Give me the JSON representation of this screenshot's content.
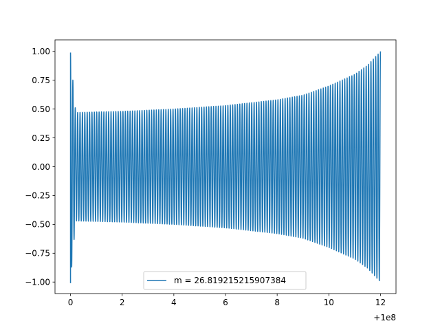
{
  "chart_data": {
    "type": "line",
    "title": "",
    "xlabel": "",
    "ylabel": "",
    "x_offset_label": "+1e8",
    "xlim": [
      -0.6,
      12.6
    ],
    "ylim": [
      -1.1,
      1.1
    ],
    "x_ticks": [
      0,
      2,
      4,
      6,
      8,
      10,
      12
    ],
    "x_tick_labels": [
      "0",
      "2",
      "4",
      "6",
      "8",
      "10",
      "12"
    ],
    "y_ticks": [
      -1.0,
      -0.75,
      -0.5,
      -0.25,
      0.0,
      0.25,
      0.5,
      0.75,
      1.0
    ],
    "y_tick_labels": [
      "−1.00",
      "−0.75",
      "−0.50",
      "−0.25",
      "0.00",
      "0.25",
      "0.50",
      "0.75",
      "1.00"
    ],
    "grid": false,
    "legend_position": "lower-center",
    "series": [
      {
        "name": "m = 26.819215215907384",
        "color": "#1f77b4",
        "x_range": [
          0,
          12
        ],
        "oscillation_cycles": 130,
        "envelope": [
          {
            "x": 0.0,
            "amplitude": 0.99
          },
          {
            "x": 0.2,
            "amplitude": 0.47
          },
          {
            "x": 2.0,
            "amplitude": 0.48
          },
          {
            "x": 4.0,
            "amplitude": 0.5
          },
          {
            "x": 6.0,
            "amplitude": 0.53
          },
          {
            "x": 8.0,
            "amplitude": 0.58
          },
          {
            "x": 9.0,
            "amplitude": 0.62
          },
          {
            "x": 10.0,
            "amplitude": 0.7
          },
          {
            "x": 11.0,
            "amplitude": 0.8
          },
          {
            "x": 11.5,
            "amplitude": 0.88
          },
          {
            "x": 12.0,
            "amplitude": 1.0
          }
        ]
      }
    ]
  }
}
